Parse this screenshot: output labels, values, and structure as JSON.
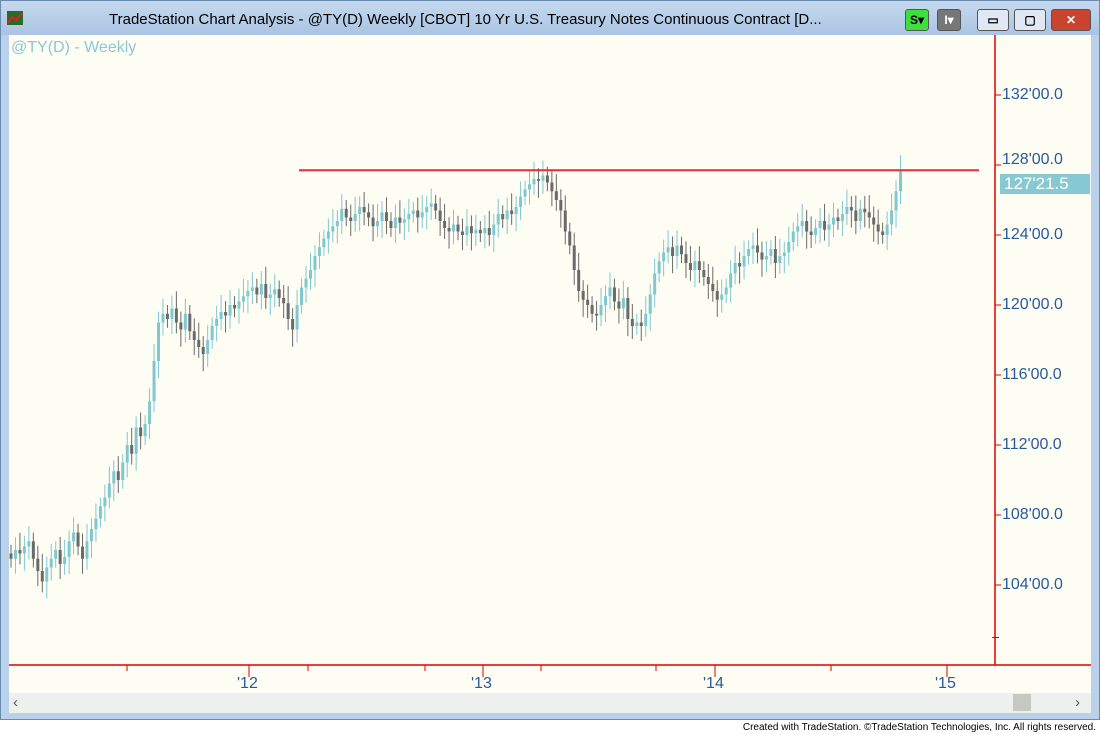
{
  "window": {
    "title": "TradeStation Chart Analysis - @TY(D) Weekly [CBOT] 10 Yr U.S. Treasury Notes Continuous Contract [D...",
    "btn_s": "S",
    "btn_i": "I"
  },
  "chart": {
    "symbol_label": "@TY(D) - Weekly",
    "last_price": "127'21.5",
    "y_labels": [
      "132'00.0",
      "128'00.0",
      "124'00.0",
      "120'00.0",
      "116'00.0",
      "112'00.0",
      "108'00.0",
      "104'00.0"
    ],
    "x_labels": [
      "'12",
      "'13",
      "'14",
      "'15"
    ],
    "colors": {
      "up": "#7fc8d0",
      "down": "#6a6a6a",
      "resistance": "#e03040",
      "axis": "#e00000"
    }
  },
  "chart_data": {
    "type": "candlestick",
    "interval": "weekly",
    "ylim": [
      101,
      134
    ],
    "resistance_level": 127.7,
    "closes": [
      105.5,
      106,
      105.8,
      106.2,
      106.5,
      105.5,
      104.8,
      104.2,
      105,
      105.5,
      106,
      105.2,
      105.6,
      106.5,
      107,
      106.2,
      105.5,
      106.5,
      107.2,
      107.8,
      108.5,
      109,
      109.8,
      110.5,
      110,
      111,
      112,
      111.5,
      113,
      112.5,
      113.2,
      114.5,
      116.8,
      119,
      119.5,
      119.2,
      119.8,
      119,
      118.6,
      119.5,
      118.5,
      118,
      117.6,
      117.2,
      118,
      118.8,
      119.2,
      119.6,
      119.4,
      120,
      119.8,
      120.2,
      120.5,
      120.8,
      121,
      120.6,
      121.2,
      120.4,
      120.6,
      120.9,
      120.4,
      120.1,
      119.2,
      118.6,
      120,
      121,
      121.5,
      122,
      122.8,
      123.3,
      123.8,
      124.2,
      124.5,
      124.8,
      125.5,
      125,
      124.8,
      125.2,
      125.6,
      125.3,
      125,
      124.5,
      124.8,
      125.3,
      124.8,
      124.4,
      125,
      124.7,
      124.9,
      125.2,
      125.4,
      125,
      125.3,
      125.6,
      125.8,
      125.4,
      124.8,
      124.4,
      124.2,
      124.6,
      124.2,
      124,
      124.5,
      124.1,
      124.3,
      124.1,
      124.4,
      124,
      124.6,
      125.2,
      124.9,
      125.4,
      125.2,
      125.6,
      126.2,
      126.6,
      126.9,
      127.2,
      127.1,
      127.4,
      127,
      126.5,
      126,
      125.4,
      124.2,
      123.4,
      122,
      120.8,
      120.3,
      120,
      119.5,
      119.4,
      120,
      120.5,
      121,
      120.2,
      119.8,
      120.4,
      119.2,
      118.8,
      119,
      118.8,
      119.5,
      120.6,
      121.8,
      122.5,
      123,
      123.3,
      122.8,
      123.4,
      122.9,
      122.4,
      122,
      122.5,
      122,
      121.6,
      121.2,
      120.8,
      120.3,
      120.6,
      121,
      121.8,
      122.4,
      122.2,
      122.8,
      123.2,
      123.4,
      123,
      122.6,
      122.8,
      123.2,
      122.4,
      122.8,
      123,
      123.6,
      124.2,
      124.5,
      124.8,
      124.2,
      124,
      124.4,
      124.8,
      124.3,
      124.6,
      125,
      124.8,
      125.2,
      125.6,
      125.4,
      124.8,
      125.5,
      125.3,
      125,
      124.6,
      124.2,
      124,
      124.6,
      125.4,
      126.5,
      127.7
    ]
  },
  "scrollbar": {
    "left": "‹",
    "right": "›"
  },
  "footer": {
    "credit": "Created with TradeStation. ©TradeStation Technologies, Inc. All rights reserved."
  }
}
